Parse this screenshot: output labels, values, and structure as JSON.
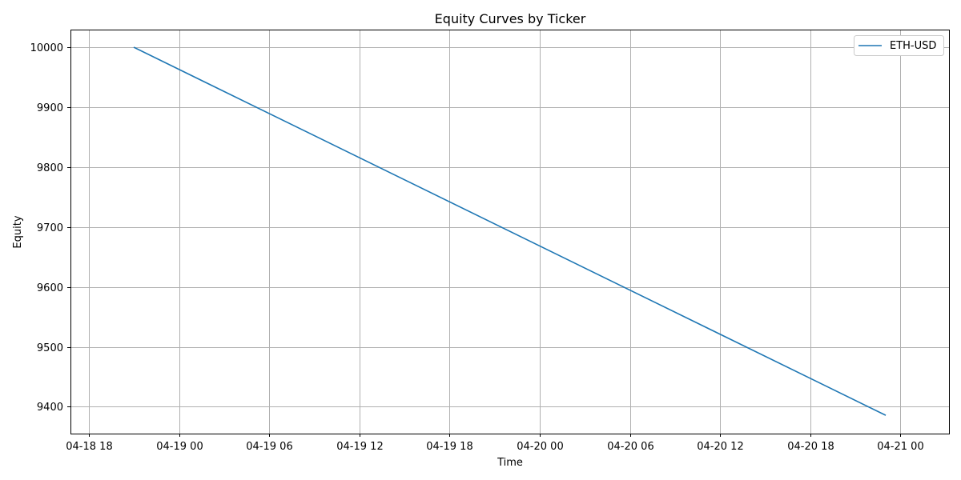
{
  "chart_data": {
    "type": "line",
    "title": "Equity Curves by Ticker",
    "xlabel": "Time",
    "ylabel": "Equity",
    "xlim": [
      "2024-04-18 16:45",
      "2024-04-21 03:15"
    ],
    "ylim": [
      9355,
      10030
    ],
    "grid": true,
    "legend_position": "top-right",
    "x_ticks": [
      {
        "value": "2024-04-18 18:00",
        "label": "04-18 18"
      },
      {
        "value": "2024-04-19 00:00",
        "label": "04-19 00"
      },
      {
        "value": "2024-04-19 06:00",
        "label": "04-19 06"
      },
      {
        "value": "2024-04-19 12:00",
        "label": "04-19 12"
      },
      {
        "value": "2024-04-19 18:00",
        "label": "04-19 18"
      },
      {
        "value": "2024-04-20 00:00",
        "label": "04-20 00"
      },
      {
        "value": "2024-04-20 06:00",
        "label": "04-20 06"
      },
      {
        "value": "2024-04-20 12:00",
        "label": "04-20 12"
      },
      {
        "value": "2024-04-20 18:00",
        "label": "04-20 18"
      },
      {
        "value": "2024-04-21 00:00",
        "label": "04-21 00"
      }
    ],
    "y_ticks": [
      9400,
      9500,
      9600,
      9700,
      9800,
      9900,
      10000
    ],
    "series": [
      {
        "name": "ETH-USD",
        "color": "#1f77b4",
        "x": [
          "2024-04-18 21:00",
          "2024-04-20 23:00"
        ],
        "y": [
          10000,
          9386
        ]
      }
    ]
  }
}
